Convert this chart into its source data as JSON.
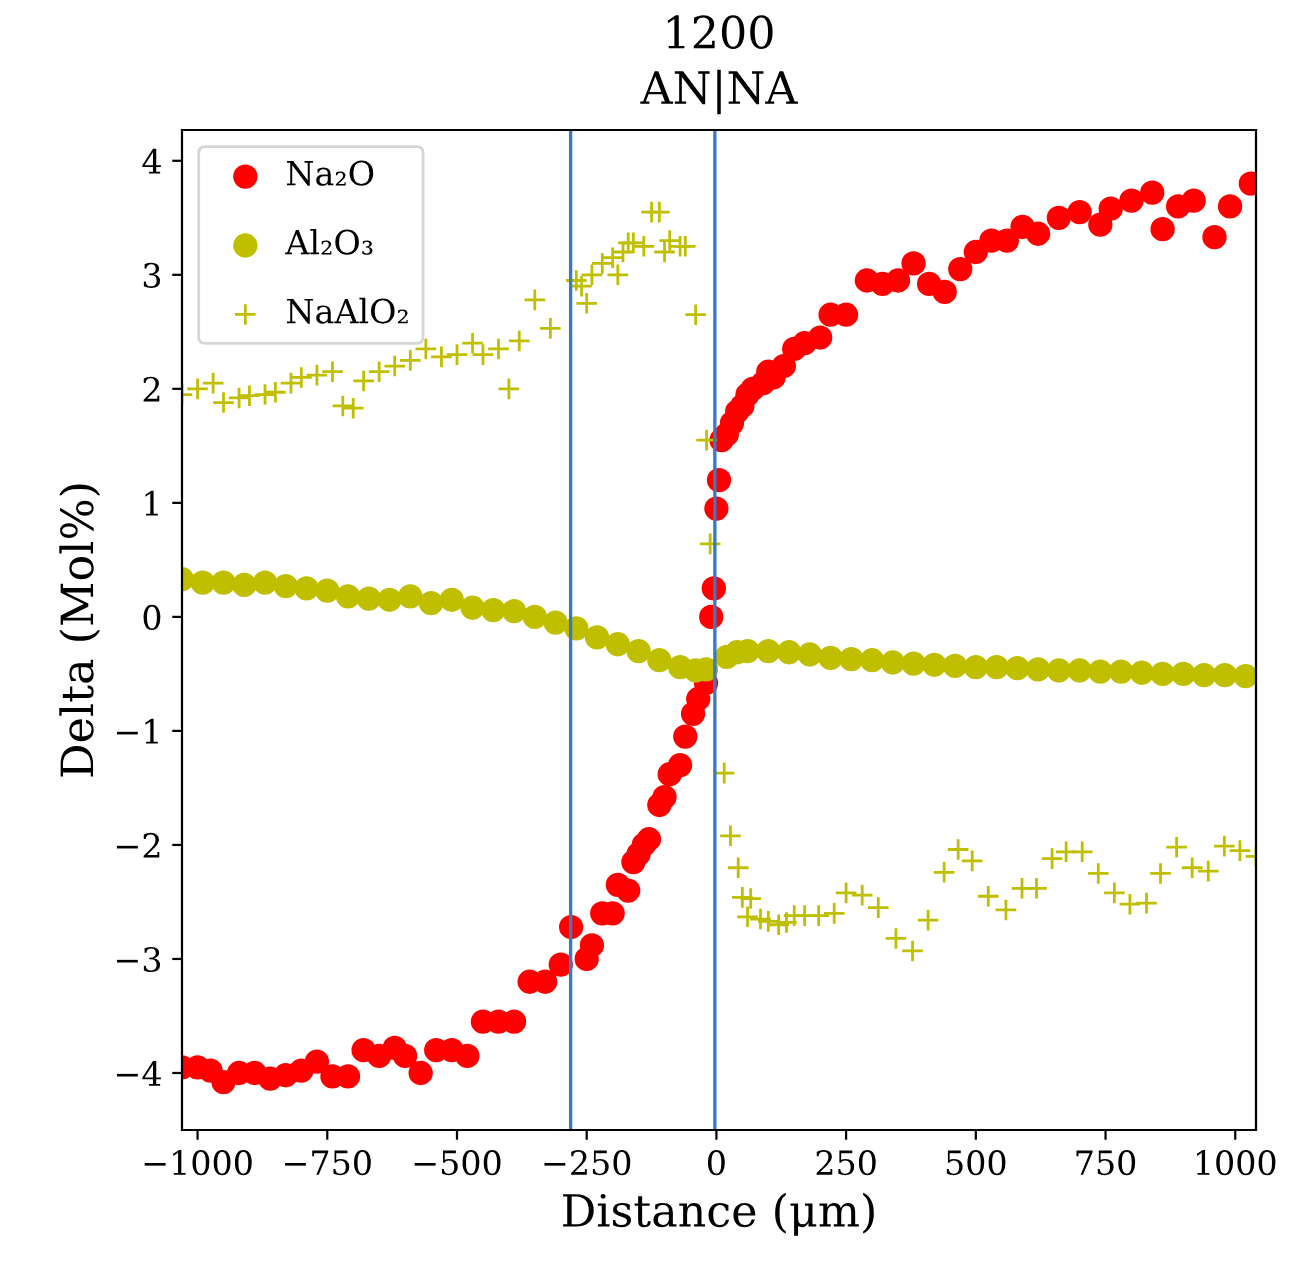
{
  "chart_data": {
    "type": "scatter",
    "title": "1200",
    "subtitle": "AN|NA",
    "xlabel": "Distance (μm)",
    "ylabel": "Delta (Mol%)",
    "xlim": [
      -1030,
      1040
    ],
    "ylim": [
      -4.5,
      4.27
    ],
    "xticks": [
      {
        "value": -1000,
        "label": "−1000"
      },
      {
        "value": -750,
        "label": "−750"
      },
      {
        "value": -500,
        "label": "−500"
      },
      {
        "value": -250,
        "label": "−250"
      },
      0,
      250,
      500,
      750,
      1000
    ],
    "yticks": [
      {
        "value": -4,
        "label": "−4"
      },
      {
        "value": -3,
        "label": "−3"
      },
      {
        "value": -2,
        "label": "−2"
      },
      {
        "value": -1,
        "label": "−1"
      },
      0,
      1,
      2,
      3,
      4
    ],
    "grid": false,
    "legend": "top left",
    "ref_lines": [
      {
        "axis": "x",
        "value": -281,
        "color": "#3a78c0"
      },
      {
        "axis": "x",
        "value": -3,
        "color": "#3a78c0"
      }
    ],
    "series": [
      {
        "name": "Na₂O",
        "color": "#ff0000",
        "marker": "circle",
        "x": [
          -1030,
          -1000,
          -975,
          -950,
          -920,
          -890,
          -860,
          -830,
          -800,
          -770,
          -740,
          -710,
          -680,
          -650,
          -620,
          -600,
          -570,
          -540,
          -510,
          -480,
          -450,
          -420,
          -390,
          -360,
          -330,
          -300,
          -280,
          -250,
          -240,
          -220,
          -200,
          -190,
          -170,
          -160,
          -150,
          -140,
          -130,
          -110,
          -100,
          -90,
          -70,
          -60,
          -45,
          -35,
          -20,
          -10,
          -5,
          0,
          5,
          10,
          20,
          30,
          40,
          50,
          60,
          70,
          90,
          100,
          110,
          130,
          150,
          170,
          200,
          220,
          250,
          290,
          320,
          350,
          380,
          410,
          440,
          470,
          500,
          530,
          560,
          590,
          620,
          660,
          700,
          740,
          760,
          800,
          840,
          860,
          890,
          920,
          960,
          990,
          1030
        ],
        "values": [
          -3.95,
          -3.95,
          -3.98,
          -4.08,
          -4.0,
          -4.0,
          -4.05,
          -4.02,
          -3.98,
          -3.9,
          -4.03,
          -4.03,
          -3.8,
          -3.85,
          -3.78,
          -3.85,
          -4.0,
          -3.8,
          -3.8,
          -3.85,
          -3.55,
          -3.55,
          -3.55,
          -3.2,
          -3.2,
          -3.05,
          -2.72,
          -3.0,
          -2.88,
          -2.6,
          -2.6,
          -2.35,
          -2.4,
          -2.15,
          -2.08,
          -2.0,
          -1.95,
          -1.65,
          -1.58,
          -1.38,
          -1.3,
          -1.05,
          -0.85,
          -0.72,
          -0.58,
          0.0,
          0.25,
          0.95,
          1.2,
          1.55,
          1.6,
          1.7,
          1.8,
          1.85,
          1.95,
          2.0,
          2.05,
          2.15,
          2.1,
          2.2,
          2.35,
          2.4,
          2.45,
          2.65,
          2.65,
          2.95,
          2.92,
          2.95,
          3.1,
          2.92,
          2.85,
          3.05,
          3.2,
          3.3,
          3.3,
          3.42,
          3.36,
          3.5,
          3.55,
          3.44,
          3.58,
          3.65,
          3.72,
          3.4,
          3.6,
          3.65,
          3.33,
          3.6,
          3.8
        ]
      },
      {
        "name": "Al₂O₃",
        "color": "#bfbf00",
        "marker": "circle",
        "x": [
          -1030,
          -990,
          -950,
          -910,
          -870,
          -830,
          -790,
          -750,
          -710,
          -670,
          -630,
          -590,
          -550,
          -510,
          -470,
          -430,
          -390,
          -350,
          -310,
          -270,
          -230,
          -190,
          -150,
          -110,
          -70,
          -40,
          -20,
          20,
          40,
          60,
          100,
          140,
          180,
          220,
          260,
          300,
          340,
          380,
          420,
          460,
          500,
          540,
          580,
          620,
          660,
          700,
          740,
          780,
          820,
          860,
          900,
          940,
          980,
          1020
        ],
        "values": [
          0.33,
          0.3,
          0.3,
          0.28,
          0.3,
          0.27,
          0.25,
          0.23,
          0.18,
          0.16,
          0.15,
          0.18,
          0.12,
          0.15,
          0.08,
          0.06,
          0.05,
          0.0,
          -0.05,
          -0.1,
          -0.18,
          -0.24,
          -0.3,
          -0.38,
          -0.44,
          -0.47,
          -0.46,
          -0.35,
          -0.31,
          -0.3,
          -0.3,
          -0.31,
          -0.33,
          -0.36,
          -0.37,
          -0.38,
          -0.4,
          -0.41,
          -0.42,
          -0.43,
          -0.44,
          -0.44,
          -0.45,
          -0.46,
          -0.47,
          -0.47,
          -0.48,
          -0.48,
          -0.49,
          -0.5,
          -0.5,
          -0.51,
          -0.51,
          -0.52
        ]
      },
      {
        "name": "NaAlO₂",
        "color": "#bfbf00",
        "marker": "cross",
        "x": [
          -1030,
          -1000,
          -970,
          -950,
          -920,
          -900,
          -870,
          -850,
          -820,
          -800,
          -770,
          -740,
          -720,
          -700,
          -680,
          -650,
          -620,
          -590,
          -560,
          -530,
          -500,
          -470,
          -450,
          -420,
          -400,
          -380,
          -350,
          -320,
          -270,
          -260,
          -250,
          -240,
          -220,
          -200,
          -190,
          -180,
          -170,
          -160,
          -140,
          -125,
          -110,
          -100,
          -90,
          -70,
          -60,
          -40,
          -19,
          -12,
          15,
          27,
          42,
          50,
          60,
          66,
          85,
          100,
          120,
          135,
          150,
          170,
          197,
          227,
          250,
          281,
          312,
          346,
          378,
          408,
          439,
          466,
          493,
          524,
          558,
          589,
          617,
          647,
          674,
          705,
          736,
          767,
          797,
          829,
          856,
          887,
          917,
          948,
          979,
          1009,
          1040
        ],
        "values": [
          1.95,
          2.0,
          2.05,
          1.88,
          1.92,
          1.94,
          1.95,
          1.97,
          2.05,
          2.1,
          2.12,
          2.15,
          1.85,
          1.83,
          2.07,
          2.15,
          2.2,
          2.25,
          2.35,
          2.28,
          2.3,
          2.4,
          2.3,
          2.35,
          2.0,
          2.42,
          2.78,
          2.53,
          2.95,
          2.9,
          2.75,
          3.0,
          3.1,
          3.15,
          3.0,
          3.2,
          3.28,
          3.28,
          3.25,
          3.55,
          3.55,
          3.2,
          3.3,
          3.25,
          3.25,
          2.65,
          1.55,
          0.64,
          -1.37,
          -1.92,
          -2.2,
          -2.46,
          -2.63,
          -2.47,
          -2.65,
          -2.67,
          -2.7,
          -2.68,
          -2.62,
          -2.62,
          -2.62,
          -2.6,
          -2.42,
          -2.44,
          -2.55,
          -2.82,
          -2.93,
          -2.66,
          -2.24,
          -2.04,
          -2.14,
          -2.45,
          -2.57,
          -2.38,
          -2.38,
          -2.12,
          -2.06,
          -2.06,
          -2.25,
          -2.42,
          -2.52,
          -2.51,
          -2.25,
          -2.02,
          -2.2,
          -2.23,
          -2.01,
          -2.05,
          -2.1
        ]
      }
    ]
  }
}
